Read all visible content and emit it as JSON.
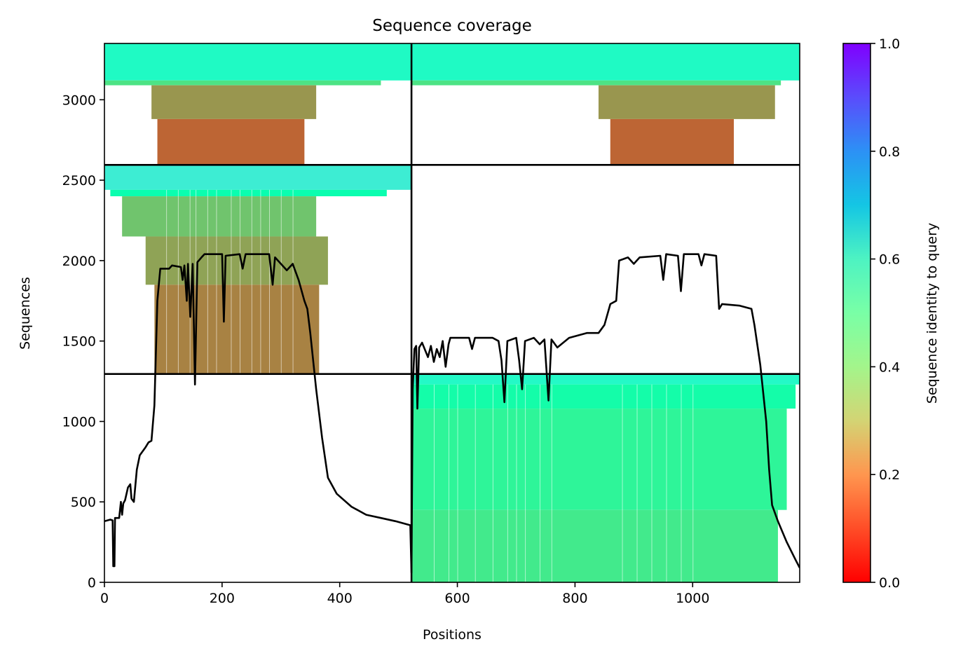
{
  "chart_data": {
    "type": "heatmap",
    "title": "Sequence coverage",
    "xlabel": "Positions",
    "ylabel": "Sequences",
    "xlim": [
      0,
      1182
    ],
    "ylim": [
      0,
      3350
    ],
    "xticks": [
      0,
      200,
      400,
      600,
      800,
      1000
    ],
    "yticks": [
      0,
      500,
      1000,
      1500,
      2000,
      2500,
      3000
    ],
    "grid": false,
    "colorbar": {
      "label": "Sequence identity to query",
      "colormap": "rainbow_r",
      "range": [
        0.0,
        1.0
      ],
      "ticks": [
        0.0,
        0.2,
        0.4,
        0.6,
        0.8,
        1.0
      ]
    },
    "chain_boundary_x": 522,
    "block_boundaries_y": [
      1295,
      2595
    ],
    "blocks": [
      {
        "x_range": [
          0,
          522
        ],
        "seq_range": [
          1295,
          2595
        ],
        "rows": [
          {
            "from": 2440,
            "to": 2595,
            "x0": 0,
            "x1": 522,
            "identity": 0.62
          },
          {
            "from": 2400,
            "to": 2440,
            "x0": 10,
            "x1": 480,
            "identity": 0.48
          },
          {
            "from": 2150,
            "to": 2400,
            "x0": 30,
            "x1": 360,
            "identity": 0.28
          },
          {
            "from": 1850,
            "to": 2150,
            "x0": 70,
            "x1": 380,
            "identity": 0.22
          },
          {
            "from": 1295,
            "to": 1850,
            "x0": 85,
            "x1": 365,
            "identity": 0.17
          }
        ]
      },
      {
        "x_range": [
          0,
          522
        ],
        "seq_range": [
          2595,
          3350
        ],
        "rows": [
          {
            "from": 3120,
            "to": 3350,
            "x0": 0,
            "x1": 522,
            "identity": 0.56
          },
          {
            "from": 3090,
            "to": 3120,
            "x0": 0,
            "x1": 470,
            "identity": 0.35
          },
          {
            "from": 2880,
            "to": 3090,
            "x0": 80,
            "x1": 360,
            "identity": 0.2
          },
          {
            "from": 2595,
            "to": 2880,
            "x0": 90,
            "x1": 340,
            "identity": 0.13
          }
        ]
      },
      {
        "x_range": [
          522,
          1182
        ],
        "seq_range": [
          2595,
          3350
        ],
        "rows": [
          {
            "from": 3120,
            "to": 3350,
            "x0": 522,
            "x1": 1182,
            "identity": 0.56
          },
          {
            "from": 3090,
            "to": 3120,
            "x0": 522,
            "x1": 1150,
            "identity": 0.35
          },
          {
            "from": 2880,
            "to": 3090,
            "x0": 840,
            "x1": 1140,
            "identity": 0.2
          },
          {
            "from": 2595,
            "to": 2880,
            "x0": 860,
            "x1": 1070,
            "identity": 0.13
          }
        ]
      },
      {
        "x_range": [
          522,
          1182
        ],
        "seq_range": [
          0,
          1295
        ],
        "rows": [
          {
            "from": 1230,
            "to": 1295,
            "x0": 522,
            "x1": 1182,
            "identity": 0.57
          },
          {
            "from": 1080,
            "to": 1230,
            "x0": 522,
            "x1": 1175,
            "identity": 0.46
          },
          {
            "from": 450,
            "to": 1080,
            "x0": 522,
            "x1": 1160,
            "identity": 0.41
          },
          {
            "from": 0,
            "to": 450,
            "x0": 522,
            "x1": 1145,
            "identity": 0.37
          }
        ]
      }
    ],
    "coverage_line": {
      "color": "#000000",
      "points": [
        [
          0,
          380
        ],
        [
          10,
          390
        ],
        [
          14,
          385
        ],
        [
          15,
          100
        ],
        [
          17,
          100
        ],
        [
          18,
          400
        ],
        [
          25,
          400
        ],
        [
          28,
          500
        ],
        [
          30,
          420
        ],
        [
          32,
          490
        ],
        [
          35,
          510
        ],
        [
          40,
          590
        ],
        [
          44,
          610
        ],
        [
          46,
          520
        ],
        [
          50,
          500
        ],
        [
          55,
          700
        ],
        [
          60,
          790
        ],
        [
          70,
          840
        ],
        [
          75,
          870
        ],
        [
          80,
          880
        ],
        [
          85,
          1100
        ],
        [
          88,
          1500
        ],
        [
          90,
          1750
        ],
        [
          95,
          1950
        ],
        [
          110,
          1950
        ],
        [
          115,
          1970
        ],
        [
          130,
          1960
        ],
        [
          133,
          1880
        ],
        [
          136,
          1970
        ],
        [
          140,
          1750
        ],
        [
          142,
          1980
        ],
        [
          146,
          1650
        ],
        [
          150,
          1980
        ],
        [
          154,
          1230
        ],
        [
          158,
          1990
        ],
        [
          165,
          2020
        ],
        [
          170,
          2040
        ],
        [
          200,
          2040
        ],
        [
          203,
          1620
        ],
        [
          206,
          2030
        ],
        [
          230,
          2040
        ],
        [
          235,
          1950
        ],
        [
          240,
          2040
        ],
        [
          280,
          2040
        ],
        [
          286,
          1850
        ],
        [
          290,
          2020
        ],
        [
          300,
          1980
        ],
        [
          310,
          1940
        ],
        [
          320,
          1980
        ],
        [
          330,
          1880
        ],
        [
          340,
          1750
        ],
        [
          345,
          1700
        ],
        [
          350,
          1550
        ],
        [
          360,
          1200
        ],
        [
          370,
          900
        ],
        [
          380,
          650
        ],
        [
          395,
          550
        ],
        [
          420,
          470
        ],
        [
          445,
          420
        ],
        [
          470,
          400
        ],
        [
          495,
          380
        ],
        [
          515,
          360
        ],
        [
          520,
          355
        ],
        [
          522,
          60
        ],
        [
          524,
          1200
        ],
        [
          527,
          1450
        ],
        [
          530,
          1470
        ],
        [
          532,
          1080
        ],
        [
          535,
          1460
        ],
        [
          540,
          1490
        ],
        [
          550,
          1400
        ],
        [
          555,
          1470
        ],
        [
          560,
          1370
        ],
        [
          565,
          1450
        ],
        [
          570,
          1400
        ],
        [
          575,
          1500
        ],
        [
          580,
          1340
        ],
        [
          585,
          1480
        ],
        [
          588,
          1520
        ],
        [
          620,
          1520
        ],
        [
          625,
          1450
        ],
        [
          630,
          1520
        ],
        [
          660,
          1520
        ],
        [
          670,
          1500
        ],
        [
          675,
          1380
        ],
        [
          680,
          1120
        ],
        [
          685,
          1500
        ],
        [
          700,
          1520
        ],
        [
          705,
          1380
        ],
        [
          710,
          1200
        ],
        [
          715,
          1500
        ],
        [
          730,
          1520
        ],
        [
          740,
          1480
        ],
        [
          748,
          1510
        ],
        [
          755,
          1130
        ],
        [
          760,
          1510
        ],
        [
          770,
          1460
        ],
        [
          790,
          1520
        ],
        [
          820,
          1550
        ],
        [
          840,
          1550
        ],
        [
          850,
          1600
        ],
        [
          860,
          1730
        ],
        [
          870,
          1750
        ],
        [
          875,
          2000
        ],
        [
          890,
          2020
        ],
        [
          900,
          1980
        ],
        [
          910,
          2020
        ],
        [
          945,
          2030
        ],
        [
          950,
          1880
        ],
        [
          955,
          2040
        ],
        [
          975,
          2030
        ],
        [
          980,
          1810
        ],
        [
          985,
          2040
        ],
        [
          1010,
          2040
        ],
        [
          1015,
          1970
        ],
        [
          1020,
          2040
        ],
        [
          1040,
          2030
        ],
        [
          1045,
          1700
        ],
        [
          1050,
          1730
        ],
        [
          1080,
          1720
        ],
        [
          1100,
          1700
        ],
        [
          1105,
          1600
        ],
        [
          1115,
          1350
        ],
        [
          1125,
          1000
        ],
        [
          1130,
          700
        ],
        [
          1135,
          480
        ],
        [
          1145,
          380
        ],
        [
          1160,
          250
        ],
        [
          1175,
          140
        ],
        [
          1182,
          90
        ]
      ]
    }
  }
}
